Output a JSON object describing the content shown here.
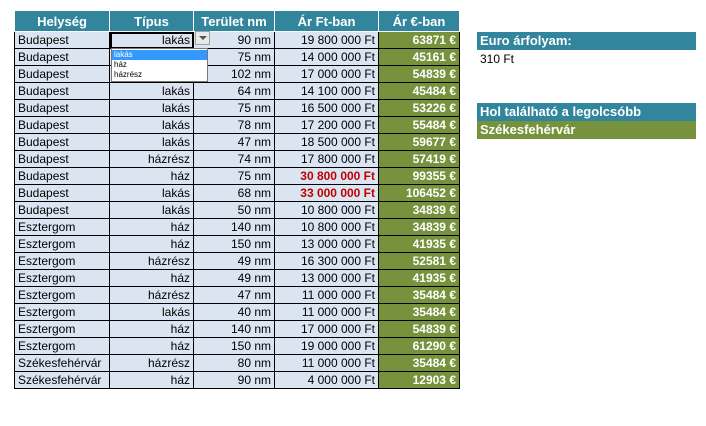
{
  "headers": [
    "Helység",
    "Típus",
    "Terület nm",
    "Ár Ft-ban",
    "Ár €-ban"
  ],
  "rows": [
    [
      "Budapest",
      "lakás",
      "90 nm",
      "19 800 000 Ft",
      "63871 €"
    ],
    [
      "Budapest",
      "",
      "75 nm",
      "14 000 000 Ft",
      "45161 €"
    ],
    [
      "Budapest",
      "",
      "102 nm",
      "17 000 000 Ft",
      "54839 €"
    ],
    [
      "Budapest",
      "lakás",
      "64 nm",
      "14 100 000 Ft",
      "45484 €"
    ],
    [
      "Budapest",
      "lakás",
      "75 nm",
      "16 500 000 Ft",
      "53226 €"
    ],
    [
      "Budapest",
      "lakás",
      "78 nm",
      "17 200 000 Ft",
      "55484 €"
    ],
    [
      "Budapest",
      "lakás",
      "47 nm",
      "18 500 000 Ft",
      "59677 €"
    ],
    [
      "Budapest",
      "házrész",
      "74 nm",
      "17 800 000 Ft",
      "57419 €"
    ],
    [
      "Budapest",
      "ház",
      "75 nm",
      "30 800 000 Ft",
      "99355 €"
    ],
    [
      "Budapest",
      "lakás",
      "68 nm",
      "33 000 000 Ft",
      "106452 €"
    ],
    [
      "Budapest",
      "lakás",
      "50 nm",
      "10 800 000 Ft",
      "34839 €"
    ],
    [
      "Esztergom",
      "ház",
      "140 nm",
      "10 800 000 Ft",
      "34839 €"
    ],
    [
      "Esztergom",
      "ház",
      "150 nm",
      "13 000 000 Ft",
      "41935 €"
    ],
    [
      "Esztergom",
      "házrész",
      "49 nm",
      "16 300 000 Ft",
      "52581 €"
    ],
    [
      "Esztergom",
      "ház",
      "49 nm",
      "13 000 000 Ft",
      "41935 €"
    ],
    [
      "Esztergom",
      "házrész",
      "47 nm",
      "11 000 000 Ft",
      "35484 €"
    ],
    [
      "Esztergom",
      "lakás",
      "40 nm",
      "11 000 000 Ft",
      "35484 €"
    ],
    [
      "Esztergom",
      "ház",
      "140 nm",
      "17 000 000 Ft",
      "54839 €"
    ],
    [
      "Esztergom",
      "ház",
      "150 nm",
      "19 000 000 Ft",
      "61290 €"
    ],
    [
      "Székesfehérvár",
      "házrész",
      "80 nm",
      "11 000 000 Ft",
      "35484 €"
    ],
    [
      "Székesfehérvár",
      "ház",
      "90 nm",
      "4 000 000 Ft",
      "12903 €"
    ]
  ],
  "highlight_rows": [
    8,
    9
  ],
  "dropdown": {
    "options": [
      "lakás",
      "ház",
      "házrész"
    ],
    "selected": "lakás"
  },
  "side": {
    "rate_label": "Euro árfolyam:",
    "rate_value": "310 Ft",
    "question": "Hol található a legolcsóbb ingatlan?",
    "answer": "Székesfehérvár"
  },
  "colors": {
    "header": "#31859c",
    "body": "#dbe5f1",
    "euro": "#76923c",
    "highlight": "#c00000"
  }
}
